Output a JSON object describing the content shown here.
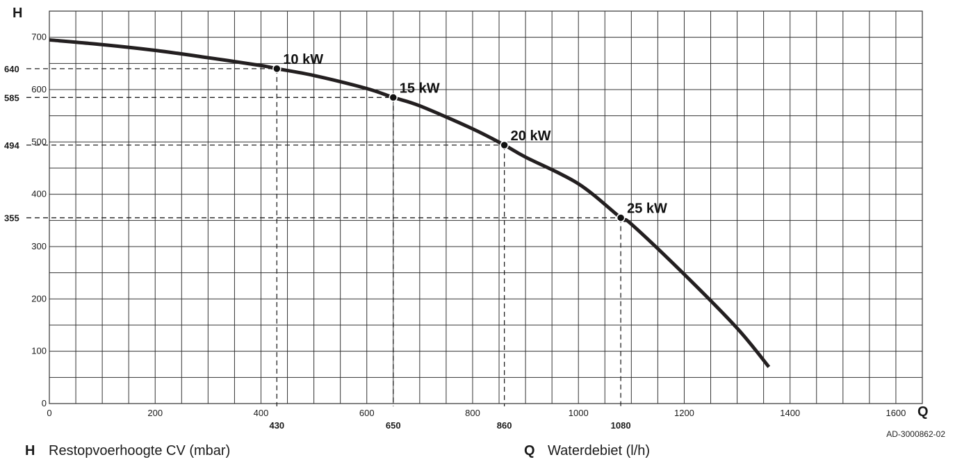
{
  "chart_data": {
    "type": "line",
    "x_axis_letter": "Q",
    "y_axis_letter": "H",
    "xlim": [
      0,
      1650
    ],
    "ylim": [
      0,
      750
    ],
    "x_ticks": [
      0,
      200,
      400,
      600,
      800,
      1000,
      1200,
      1400,
      1600
    ],
    "y_ticks": [
      0,
      100,
      200,
      300,
      400,
      500,
      600,
      700
    ],
    "minor_grid_x_step": 50,
    "minor_grid_y_step": 50,
    "grid": true,
    "series": [
      {
        "x": [
          0,
          100,
          200,
          300,
          400,
          430,
          500,
          600,
          650,
          700,
          800,
          860,
          900,
          1000,
          1080,
          1100,
          1200,
          1300,
          1360
        ],
        "y": [
          695,
          686,
          675,
          661,
          646,
          640,
          627,
          602,
          585,
          569,
          525,
          494,
          471,
          420,
          355,
          343,
          247,
          144,
          70
        ]
      }
    ],
    "highlighted_points": [
      {
        "label": "10 kW",
        "x": 430,
        "y": 640,
        "x_label": "430",
        "y_label": "640"
      },
      {
        "label": "15 kW",
        "x": 650,
        "y": 585,
        "x_label": "650",
        "y_label": "585"
      },
      {
        "label": "20 kW",
        "x": 860,
        "y": 494,
        "x_label": "860",
        "y_label": "494"
      },
      {
        "label": "25 kW",
        "x": 1080,
        "y": 355,
        "x_label": "1080",
        "y_label": "355"
      }
    ]
  },
  "legend": {
    "h_key": "H",
    "h_text": "Restopvoerhoogte CV (mbar)",
    "q_key": "Q",
    "q_text": "Waterdebiet (l/h)"
  },
  "doc_code": "AD-3000862-02"
}
